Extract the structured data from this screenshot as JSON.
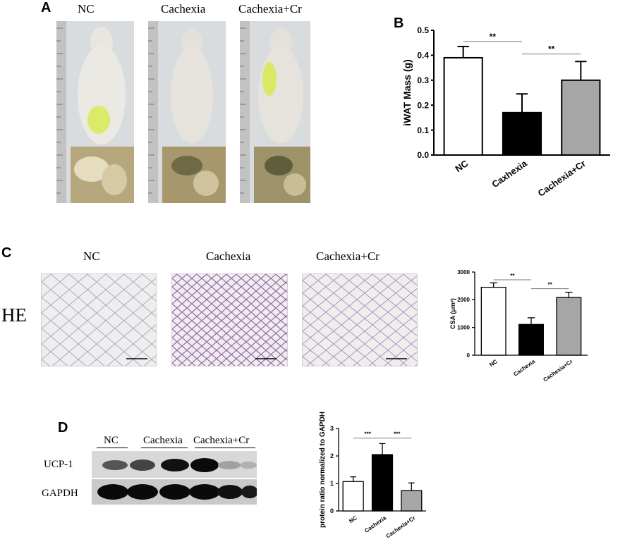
{
  "panel_a": {
    "letter": "A",
    "groups": [
      "NC",
      "Cachexia",
      "Cachexia+Cr"
    ],
    "colors": {
      "ruler": "#c9c9c9",
      "fur": "#e4e2dd",
      "stain": "#d7e84a",
      "tissue": "#b7a77c"
    }
  },
  "panel_b": {
    "letter": "B",
    "chart_data": {
      "type": "bar",
      "categories": [
        "NC",
        "Caxhexia",
        "Cachexia+Cr"
      ],
      "values": [
        0.39,
        0.17,
        0.3
      ],
      "errors": [
        0.045,
        0.075,
        0.075
      ],
      "ylabel": "iWAT Mass (g)",
      "ylim": [
        0,
        0.5
      ],
      "yticks": [
        "0.0",
        "0.1",
        "0.2",
        "0.3",
        "0.4",
        "0.5"
      ],
      "fills": [
        "#ffffff",
        "#000000",
        "#a6a6a6"
      ],
      "significance": [
        "**",
        "**"
      ]
    }
  },
  "panel_c": {
    "letter": "C",
    "row_label": "HE",
    "groups": [
      "NC",
      "Cachexia",
      "Cachexia+Cr"
    ],
    "chart_data": {
      "type": "bar",
      "categories": [
        "NC",
        "Cachexia",
        "Cachexia+Cr"
      ],
      "values": [
        2450,
        1110,
        2080
      ],
      "errors": [
        160,
        240,
        190
      ],
      "ylabel": "CSA (μm²)",
      "ylim": [
        0,
        3000
      ],
      "yticks": [
        "0",
        "1000",
        "2000",
        "3000"
      ],
      "fills": [
        "#ffffff",
        "#000000",
        "#a6a6a6"
      ],
      "significance": [
        "**",
        "**"
      ]
    }
  },
  "panel_d": {
    "letter": "D",
    "groups": [
      "NC",
      "Cachexia",
      "Cachexia+Cr"
    ],
    "blot_labels": [
      "UCP-1",
      "GAPDH"
    ],
    "chart_data": {
      "type": "bar",
      "categories": [
        "NC",
        "Cachexia",
        "Cachexia+Cr"
      ],
      "values": [
        1.07,
        2.05,
        0.74
      ],
      "errors": [
        0.17,
        0.4,
        0.28
      ],
      "ylabel": "protein ratio normalized to GAPDH",
      "ylim": [
        0,
        3
      ],
      "yticks": [
        "0",
        "1",
        "2",
        "3"
      ],
      "fills": [
        "#ffffff",
        "#000000",
        "#a6a6a6"
      ],
      "significance": [
        "***",
        "***"
      ]
    }
  }
}
